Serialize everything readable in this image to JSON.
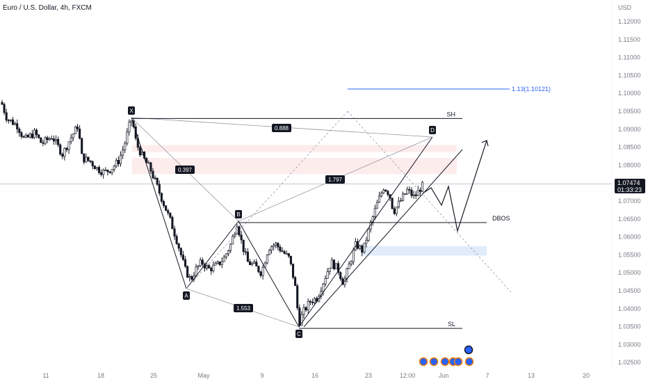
{
  "chart_data": {
    "type": "candlestick",
    "title": "Euro / U.S. Dollar, 4h, FXCM",
    "currency_label": "USD",
    "ylim": [
      1.022,
      1.125
    ],
    "y_ticks": [
      "1.12000",
      "1.11500",
      "1.11000",
      "1.10500",
      "1.10000",
      "1.09500",
      "1.09000",
      "1.08500",
      "1.08000",
      "1.07500",
      "1.07000",
      "1.06500",
      "1.06000",
      "1.05500",
      "1.05000",
      "1.04500",
      "1.04000",
      "1.03500",
      "1.03000",
      "1.02500"
    ],
    "x_ticks": [
      "11",
      "18",
      "25",
      "May",
      "9",
      "16",
      "23",
      "12:00",
      "Jun",
      "7",
      "13",
      "20"
    ],
    "last_price": "1.07474",
    "countdown": "01:33:23",
    "current_price_value": 1.07474,
    "colors": {
      "up": "#131722",
      "down": "#131722",
      "zone_red": "#fde9e9",
      "zone_blue": "#dbe7fb",
      "target": "#2962ff"
    },
    "harmonic_points": [
      {
        "label": "X",
        "price": 1.0931
      },
      {
        "label": "A",
        "price": 1.0455
      },
      {
        "label": "B",
        "price": 1.064
      },
      {
        "label": "C",
        "price": 1.0345
      },
      {
        "label": "D",
        "price": 1.0878
      }
    ],
    "ratios": [
      {
        "label": "0.397"
      },
      {
        "label": "1.797"
      },
      {
        "label": "0.888"
      },
      {
        "label": "1.553"
      }
    ],
    "levels": [
      {
        "label": "SH",
        "price": 1.093
      },
      {
        "label": "DBOS",
        "price": 1.064
      },
      {
        "label": "SL",
        "price": 1.0345
      }
    ],
    "target": {
      "label": "1.13(1.10121)",
      "price": 1.1012
    },
    "zones": [
      {
        "name": "supply-zone-upper",
        "from": 1.0836,
        "to": 1.0856
      },
      {
        "name": "supply-zone-lower",
        "from": 1.0775,
        "to": 1.082
      },
      {
        "name": "demand-zone",
        "from": 1.0548,
        "to": 1.0574
      }
    ]
  }
}
